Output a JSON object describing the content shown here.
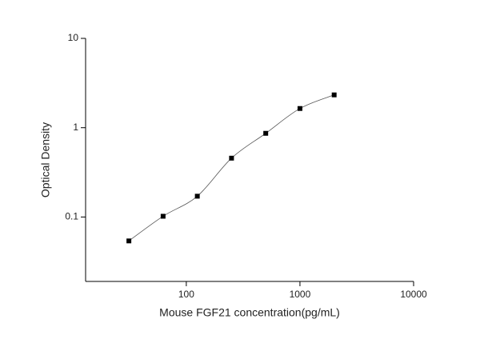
{
  "chart_data": {
    "type": "scatter",
    "x_label": "Mouse FGF21 concentration(pg/mL)",
    "y_label": "Optical Density",
    "x": [
      31.25,
      62.5,
      125,
      250,
      500,
      1000,
      2000
    ],
    "values": [
      0.054,
      0.102,
      0.171,
      0.456,
      0.865,
      1.64,
      2.33
    ],
    "color": "#000000",
    "xlog": true,
    "ylog": true,
    "xlim": [
      13,
      10000
    ],
    "ylim": [
      0.019,
      10
    ],
    "xticks": [
      100,
      1000,
      10000
    ],
    "yticks": [
      0.1,
      1,
      10
    ],
    "fit_curve": true
  }
}
